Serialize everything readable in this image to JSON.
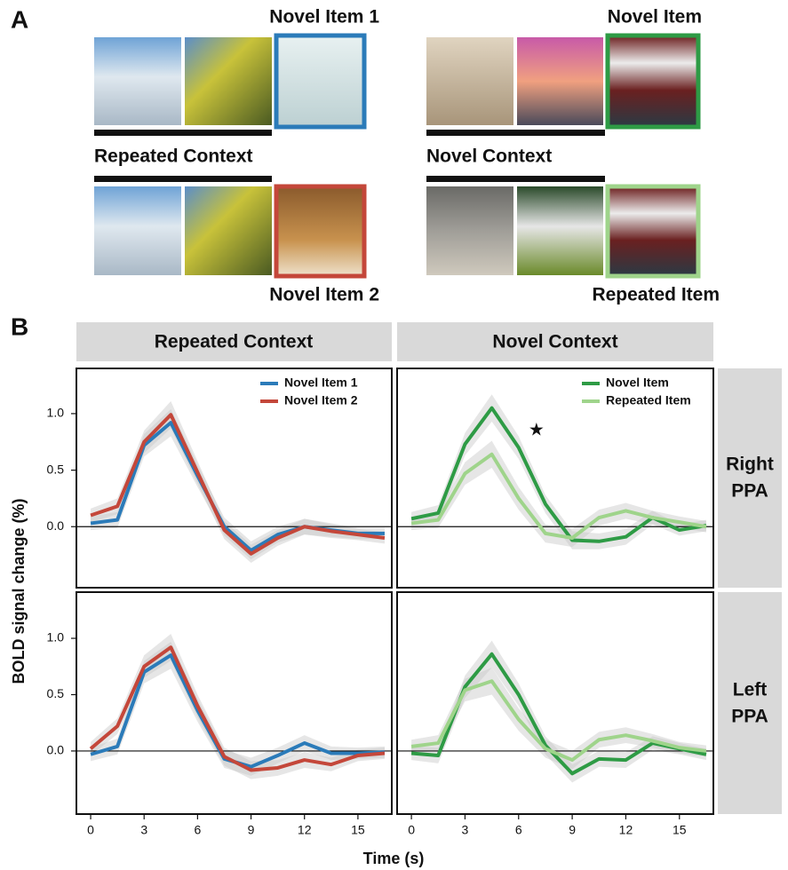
{
  "panel_a": {
    "label": "A",
    "novel_item_1": "Novel Item 1",
    "repeated_context": "Repeated Context",
    "novel_item_2": "Novel Item 2",
    "novel_item": "Novel Item",
    "novel_context": "Novel Context",
    "repeated_item": "Repeated Item"
  },
  "panel_b": {
    "label": "B",
    "column_titles": [
      "Repeated Context",
      "Novel Context"
    ],
    "row_titles": [
      [
        "Right",
        "PPA"
      ],
      [
        "Left",
        "PPA"
      ]
    ],
    "ylabel": "BOLD signal change (%)",
    "xlabel": "Time (s)"
  },
  "chart_data": [
    {
      "type": "line",
      "x": [
        0,
        1.5,
        3,
        4.5,
        6,
        7.5,
        9,
        10.5,
        12,
        13.5,
        15,
        16.5
      ],
      "xlim": [
        -0.8,
        16.9
      ],
      "ylim": [
        -0.54,
        1.4
      ],
      "yticks": [
        {
          "value": 0,
          "label": "0.0"
        },
        {
          "value": 0.5,
          "label": "0.5"
        },
        {
          "value": 1,
          "label": "1.0"
        }
      ],
      "hline": 0,
      "legend": "upper right",
      "series": [
        {
          "name": "Novel Item 1",
          "color": "#2b7bb9",
          "values": [
            0.03,
            0.06,
            0.72,
            0.92,
            0.45,
            0.0,
            -0.21,
            -0.07,
            0.0,
            -0.03,
            -0.06,
            -0.06
          ],
          "errors": [
            0.06,
            0.07,
            0.1,
            0.12,
            0.1,
            0.08,
            0.08,
            0.07,
            0.07,
            0.06,
            0.05,
            0.05
          ]
        },
        {
          "name": "Novel Item 2",
          "color": "#c4473a",
          "values": [
            0.1,
            0.18,
            0.75,
            0.99,
            0.48,
            -0.03,
            -0.24,
            -0.1,
            0.0,
            -0.04,
            -0.07,
            -0.1
          ],
          "errors": [
            0.06,
            0.07,
            0.1,
            0.12,
            0.1,
            0.08,
            0.08,
            0.07,
            0.07,
            0.06,
            0.05,
            0.05
          ]
        }
      ]
    },
    {
      "type": "line",
      "x": [
        0,
        1.5,
        3,
        4.5,
        6,
        7.5,
        9,
        10.5,
        12,
        13.5,
        15,
        16.5
      ],
      "xlim": [
        -0.8,
        16.9
      ],
      "ylim": [
        -0.54,
        1.4
      ],
      "hline": 0,
      "legend": "upper right",
      "annotations": [
        {
          "text": "★",
          "x": 7,
          "y": 0.85
        }
      ],
      "series": [
        {
          "name": "Novel Item",
          "color": "#2e9b45",
          "values": [
            0.07,
            0.12,
            0.73,
            1.05,
            0.7,
            0.2,
            -0.12,
            -0.13,
            -0.09,
            0.08,
            -0.03,
            0.01
          ],
          "errors": [
            0.06,
            0.07,
            0.1,
            0.12,
            0.1,
            0.08,
            0.08,
            0.07,
            0.07,
            0.06,
            0.05,
            0.05
          ]
        },
        {
          "name": "Repeated Item",
          "color": "#9fd48b",
          "values": [
            0.03,
            0.06,
            0.47,
            0.64,
            0.25,
            -0.06,
            -0.1,
            0.08,
            0.14,
            0.08,
            0.04,
            0.0
          ],
          "errors": [
            0.06,
            0.07,
            0.1,
            0.12,
            0.1,
            0.08,
            0.08,
            0.07,
            0.07,
            0.06,
            0.05,
            0.05
          ]
        }
      ]
    },
    {
      "type": "line",
      "x": [
        0,
        1.5,
        3,
        4.5,
        6,
        7.5,
        9,
        10.5,
        12,
        13.5,
        15,
        16.5
      ],
      "xlim": [
        -0.8,
        16.9
      ],
      "ylim": [
        -0.56,
        1.41
      ],
      "xticks": [
        0,
        3,
        6,
        9,
        12,
        15
      ],
      "yticks": [
        {
          "value": 0,
          "label": "0.0"
        },
        {
          "value": 0.5,
          "label": "0.5"
        },
        {
          "value": 1,
          "label": "1.0"
        }
      ],
      "hline": 0,
      "series": [
        {
          "color": "#2b7bb9",
          "values": [
            -0.03,
            0.04,
            0.7,
            0.85,
            0.36,
            -0.07,
            -0.14,
            -0.04,
            0.07,
            -0.02,
            -0.02,
            -0.01
          ],
          "errors": [
            0.06,
            0.07,
            0.1,
            0.12,
            0.1,
            0.08,
            0.08,
            0.07,
            0.07,
            0.06,
            0.05,
            0.05
          ]
        },
        {
          "color": "#c4473a",
          "values": [
            0.02,
            0.22,
            0.75,
            0.92,
            0.4,
            -0.05,
            -0.17,
            -0.15,
            -0.08,
            -0.12,
            -0.04,
            -0.02
          ],
          "errors": [
            0.06,
            0.07,
            0.1,
            0.12,
            0.1,
            0.08,
            0.08,
            0.07,
            0.07,
            0.06,
            0.05,
            0.05
          ]
        }
      ]
    },
    {
      "type": "line",
      "x": [
        0,
        1.5,
        3,
        4.5,
        6,
        7.5,
        9,
        10.5,
        12,
        13.5,
        15,
        16.5
      ],
      "xlim": [
        -0.8,
        16.9
      ],
      "ylim": [
        -0.56,
        1.41
      ],
      "xticks": [
        0,
        3,
        6,
        9,
        12,
        15
      ],
      "hline": 0,
      "series": [
        {
          "color": "#2e9b45",
          "values": [
            -0.02,
            -0.04,
            0.57,
            0.86,
            0.5,
            0.05,
            -0.2,
            -0.07,
            -0.08,
            0.07,
            0.02,
            -0.03
          ],
          "errors": [
            0.06,
            0.07,
            0.1,
            0.12,
            0.1,
            0.08,
            0.08,
            0.07,
            0.07,
            0.06,
            0.05,
            0.05
          ]
        },
        {
          "color": "#9fd48b",
          "values": [
            0.04,
            0.07,
            0.54,
            0.62,
            0.28,
            0.02,
            -0.08,
            0.1,
            0.14,
            0.09,
            0.03,
            0.0
          ],
          "errors": [
            0.06,
            0.07,
            0.1,
            0.12,
            0.1,
            0.08,
            0.08,
            0.07,
            0.07,
            0.06,
            0.05,
            0.05
          ]
        }
      ]
    }
  ]
}
